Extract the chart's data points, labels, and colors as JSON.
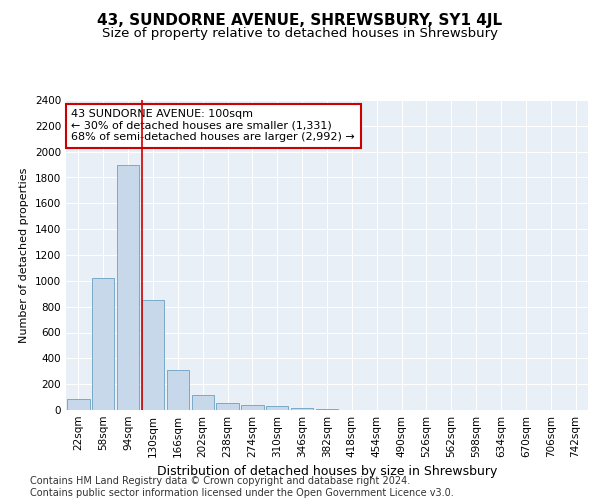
{
  "title": "43, SUNDORNE AVENUE, SHREWSBURY, SY1 4JL",
  "subtitle": "Size of property relative to detached houses in Shrewsbury",
  "xlabel": "Distribution of detached houses by size in Shrewsbury",
  "ylabel": "Number of detached properties",
  "bar_color": "#c8d8eb",
  "bar_edge_color": "#7aaac8",
  "vline_color": "#cc0000",
  "vline_x_idx": 2.55,
  "annotation_text": "43 SUNDORNE AVENUE: 100sqm\n← 30% of detached houses are smaller (1,331)\n68% of semi-detached houses are larger (2,992) →",
  "annotation_box_color": "#ffffff",
  "annotation_box_edge": "#cc0000",
  "categories": [
    "22sqm",
    "58sqm",
    "94sqm",
    "130sqm",
    "166sqm",
    "202sqm",
    "238sqm",
    "274sqm",
    "310sqm",
    "346sqm",
    "382sqm",
    "418sqm",
    "454sqm",
    "490sqm",
    "526sqm",
    "562sqm",
    "598sqm",
    "634sqm",
    "670sqm",
    "706sqm",
    "742sqm"
  ],
  "values": [
    85,
    1020,
    1900,
    855,
    310,
    120,
    52,
    42,
    28,
    14,
    5,
    3,
    2,
    1,
    1,
    0,
    0,
    0,
    0,
    0,
    0
  ],
  "ylim": [
    0,
    2400
  ],
  "yticks": [
    0,
    200,
    400,
    600,
    800,
    1000,
    1200,
    1400,
    1600,
    1800,
    2000,
    2200,
    2400
  ],
  "background_color": "#ffffff",
  "plot_bg_color": "#e8eff6",
  "grid_color": "#ffffff",
  "footer_text": "Contains HM Land Registry data © Crown copyright and database right 2024.\nContains public sector information licensed under the Open Government Licence v3.0.",
  "title_fontsize": 11,
  "subtitle_fontsize": 9.5,
  "xlabel_fontsize": 9,
  "ylabel_fontsize": 8,
  "tick_fontsize": 7.5,
  "annotation_fontsize": 8,
  "footer_fontsize": 7
}
